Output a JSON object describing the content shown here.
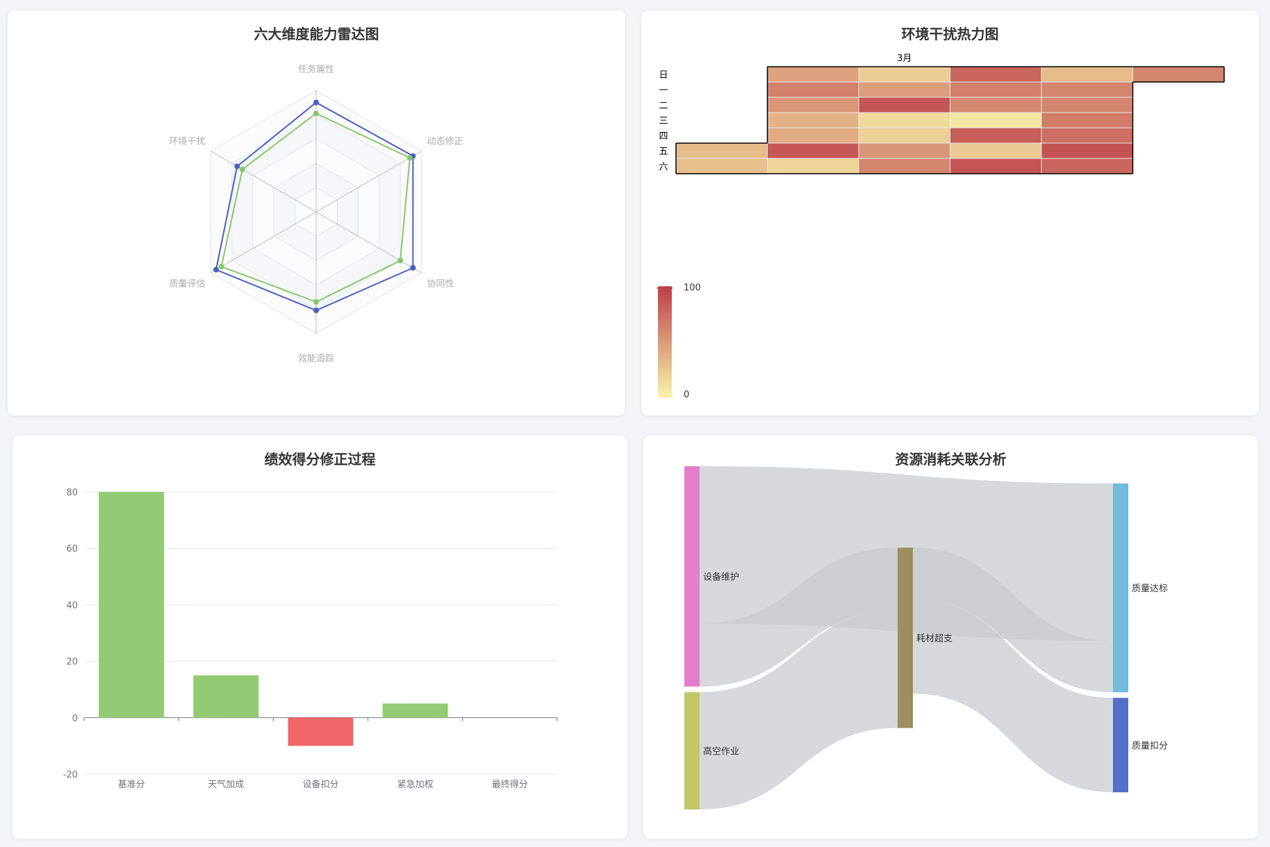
{
  "colors": {
    "radar_series_1": "#4a5fc1",
    "radar_series_2": "#85c86a",
    "bar_positive": "#92cb73",
    "bar_negative": "#ef6666",
    "heat_low": "#f6efa6",
    "heat_high": "#bf444c",
    "sankey_link": "#c8cbcf"
  },
  "radar": {
    "title": "六大维度能力雷达图",
    "chart_data": {
      "type": "radar",
      "indicators": [
        "任务属性",
        "动态修正",
        "协同性",
        "效能追踪",
        "质量评估",
        "环境干扰"
      ],
      "max": 100,
      "series": [
        {
          "values": [
            90,
            92,
            92,
            81,
            95,
            75
          ]
        },
        {
          "values": [
            81,
            89,
            80,
            74,
            90,
            70
          ]
        }
      ]
    }
  },
  "heatmap": {
    "title": "环境干扰热力图",
    "month_label": "3月",
    "weekday_labels": [
      "日",
      "一",
      "二",
      "三",
      "四",
      "五",
      "六"
    ],
    "chart_data": {
      "type": "heatmap",
      "calendar": "2025-03",
      "visual_map": {
        "min": 0,
        "max": 100,
        "labels": [
          "100",
          "0"
        ]
      },
      "weeks": [
        [
          null,
          null,
          null,
          null,
          null,
          30,
          28
        ],
        [
          45,
          65,
          52,
          35,
          40,
          88,
          15
        ],
        [
          20,
          48,
          90,
          12,
          18,
          52,
          62
        ],
        [
          80,
          65,
          60,
          5,
          85,
          22,
          90
        ],
        [
          30,
          62,
          62,
          68,
          75,
          92,
          80
        ],
        [
          62,
          null,
          null,
          null,
          null,
          null,
          null
        ]
      ]
    }
  },
  "bar": {
    "title": "绩效得分修正过程",
    "chart_data": {
      "type": "bar",
      "categories": [
        "基准分",
        "天气加成",
        "设备扣分",
        "紧急加权",
        "最终得分"
      ],
      "values": [
        80,
        15,
        -10,
        5,
        0
      ],
      "ylim": [
        -20,
        80
      ],
      "yticks": [
        "-20",
        "0",
        "20",
        "40",
        "60",
        "80"
      ]
    }
  },
  "sankey": {
    "title": "资源消耗关联分析",
    "chart_data": {
      "type": "sankey",
      "nodes": [
        {
          "name": "设备维护",
          "color": "#e57fcb"
        },
        {
          "name": "高空作业",
          "color": "#c2c76a"
        },
        {
          "name": "耗材超支",
          "color": "#9a8f5d"
        },
        {
          "name": "质量达标",
          "color": "#72bbdc"
        },
        {
          "name": "质量扣分",
          "color": "#5470c6"
        }
      ],
      "links": [
        {
          "source": "设备维护",
          "target": "质量达标",
          "value": 55
        },
        {
          "source": "设备维护",
          "target": "耗材超支",
          "value": 22
        },
        {
          "source": "高空作业",
          "target": "耗材超支",
          "value": 41
        },
        {
          "source": "耗材超支",
          "target": "质量达标",
          "value": 18
        },
        {
          "source": "耗材超支",
          "target": "质量扣分",
          "value": 33
        }
      ]
    }
  }
}
